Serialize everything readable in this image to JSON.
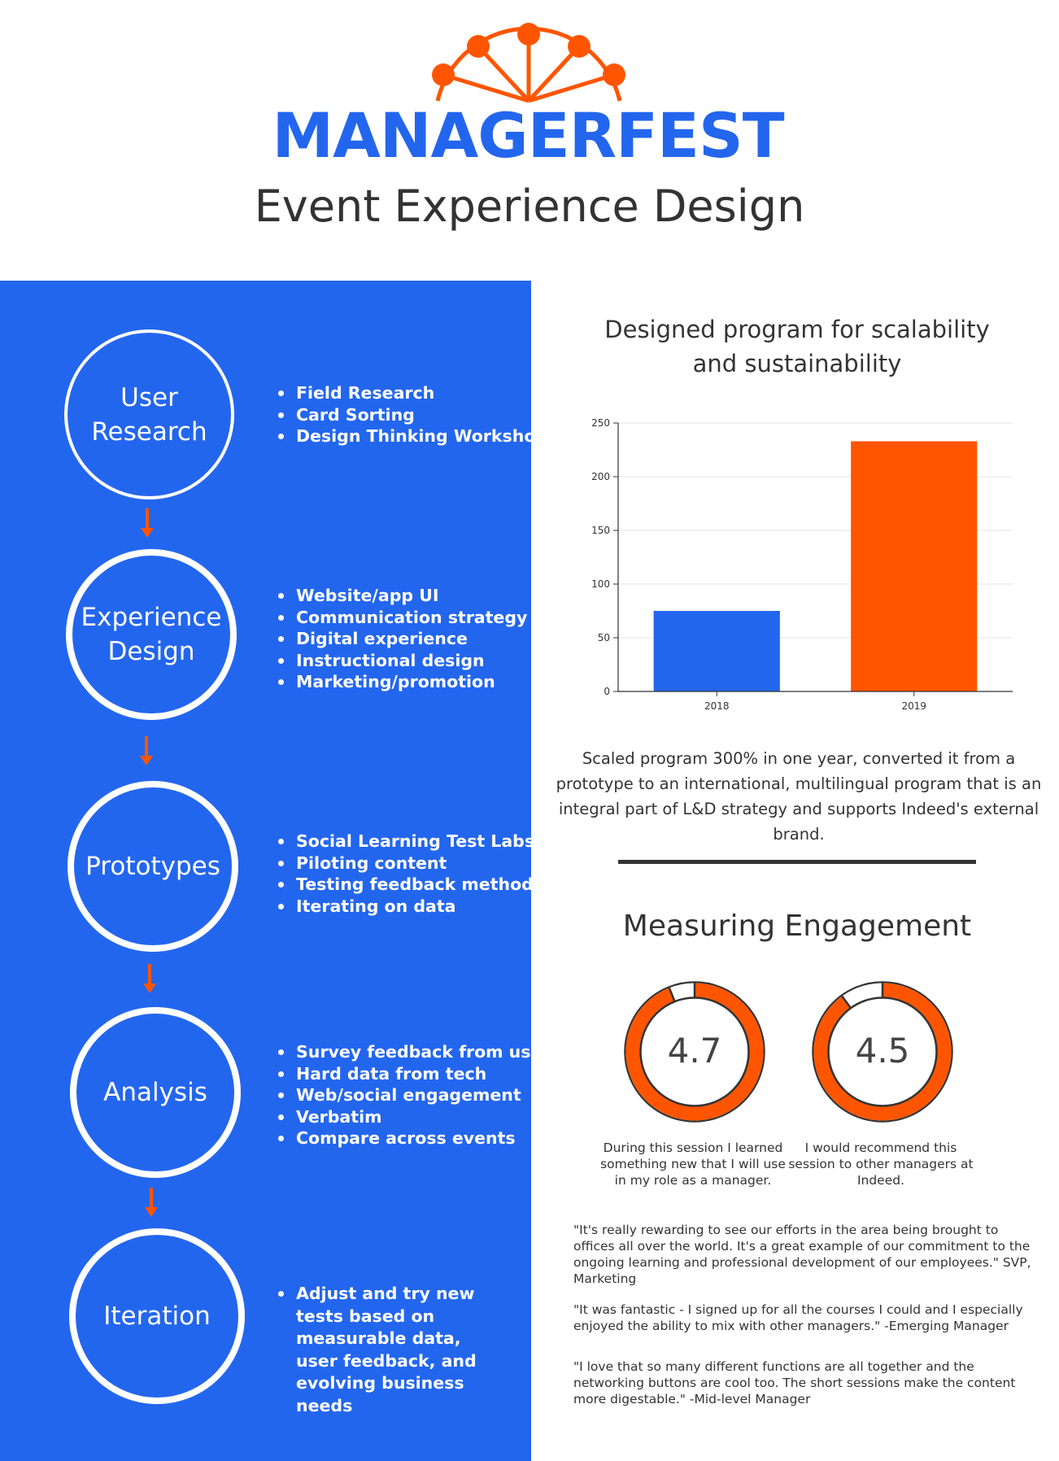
{
  "header": {
    "brand": "MANAGERFEST",
    "subtitle": "Event Experience Design",
    "logo_icon": "ferris-wheel-icon",
    "brand_color": "#2366ee",
    "accent_color": "#ff5500"
  },
  "process": {
    "stages": [
      {
        "label": "User\nResearch",
        "bullets": [
          "Field Research",
          "Card Sorting",
          "Design Thinking Workshops"
        ]
      },
      {
        "label": "Experience\nDesign",
        "bullets": [
          "Website/app UI",
          "Communication strategy",
          "Digital experience",
          "Instructional design",
          "Marketing/promotion"
        ]
      },
      {
        "label": "Prototypes",
        "bullets": [
          "Social Learning Test Labs",
          "Piloting content",
          "Testing feedback methods",
          "Iterating on data"
        ]
      },
      {
        "label": "Analysis",
        "bullets": [
          "Survey feedback from users",
          "Hard data from tech",
          "Web/social engagement",
          "Verbatim",
          "Compare across events"
        ]
      },
      {
        "label": "Iteration",
        "bullets": [
          "Adjust and try new tests based on measurable data, user feedback, and evolving business needs"
        ]
      }
    ],
    "arrow_icon": "down-arrow-icon"
  },
  "chart_data": {
    "type": "bar",
    "title": "Designed program for scalability and sustainability",
    "categories": [
      "2018",
      "2019"
    ],
    "values": [
      75,
      233
    ],
    "colors": [
      "#2366ee",
      "#ff5500"
    ],
    "ylim": [
      0,
      250
    ],
    "yticks": [
      0,
      50,
      100,
      150,
      200,
      250
    ],
    "xlabel": "",
    "ylabel": "",
    "grid": true
  },
  "summary": "Scaled program 300% in one year, converted it from a prototype to an international, multilingual program that is an integral part of L&D strategy and supports Indeed's external brand.",
  "engagement": {
    "title": "Measuring Engagement",
    "scale_max": 5,
    "ratings": [
      {
        "value": "4.7",
        "score": 4.7,
        "caption": "During this session I learned something new that I will use in my role as a manager."
      },
      {
        "value": "4.5",
        "score": 4.5,
        "caption": "I would recommend this session to other managers at Indeed."
      }
    ]
  },
  "quotes": [
    "\"It's really rewarding to see our efforts in the area being brought to offices all over the world. It's a great example of our commitment to the ongoing learning and professional development of our employees.\" SVP, Marketing",
    "\"It was fantastic - I signed up for all the courses I could and I especially enjoyed the ability to mix with other managers.\" -Emerging Manager",
    "\"I love that so many different functions are all together and the networking buttons are cool too. The short sessions make the content more digestable.\" -Mid-level Manager"
  ]
}
